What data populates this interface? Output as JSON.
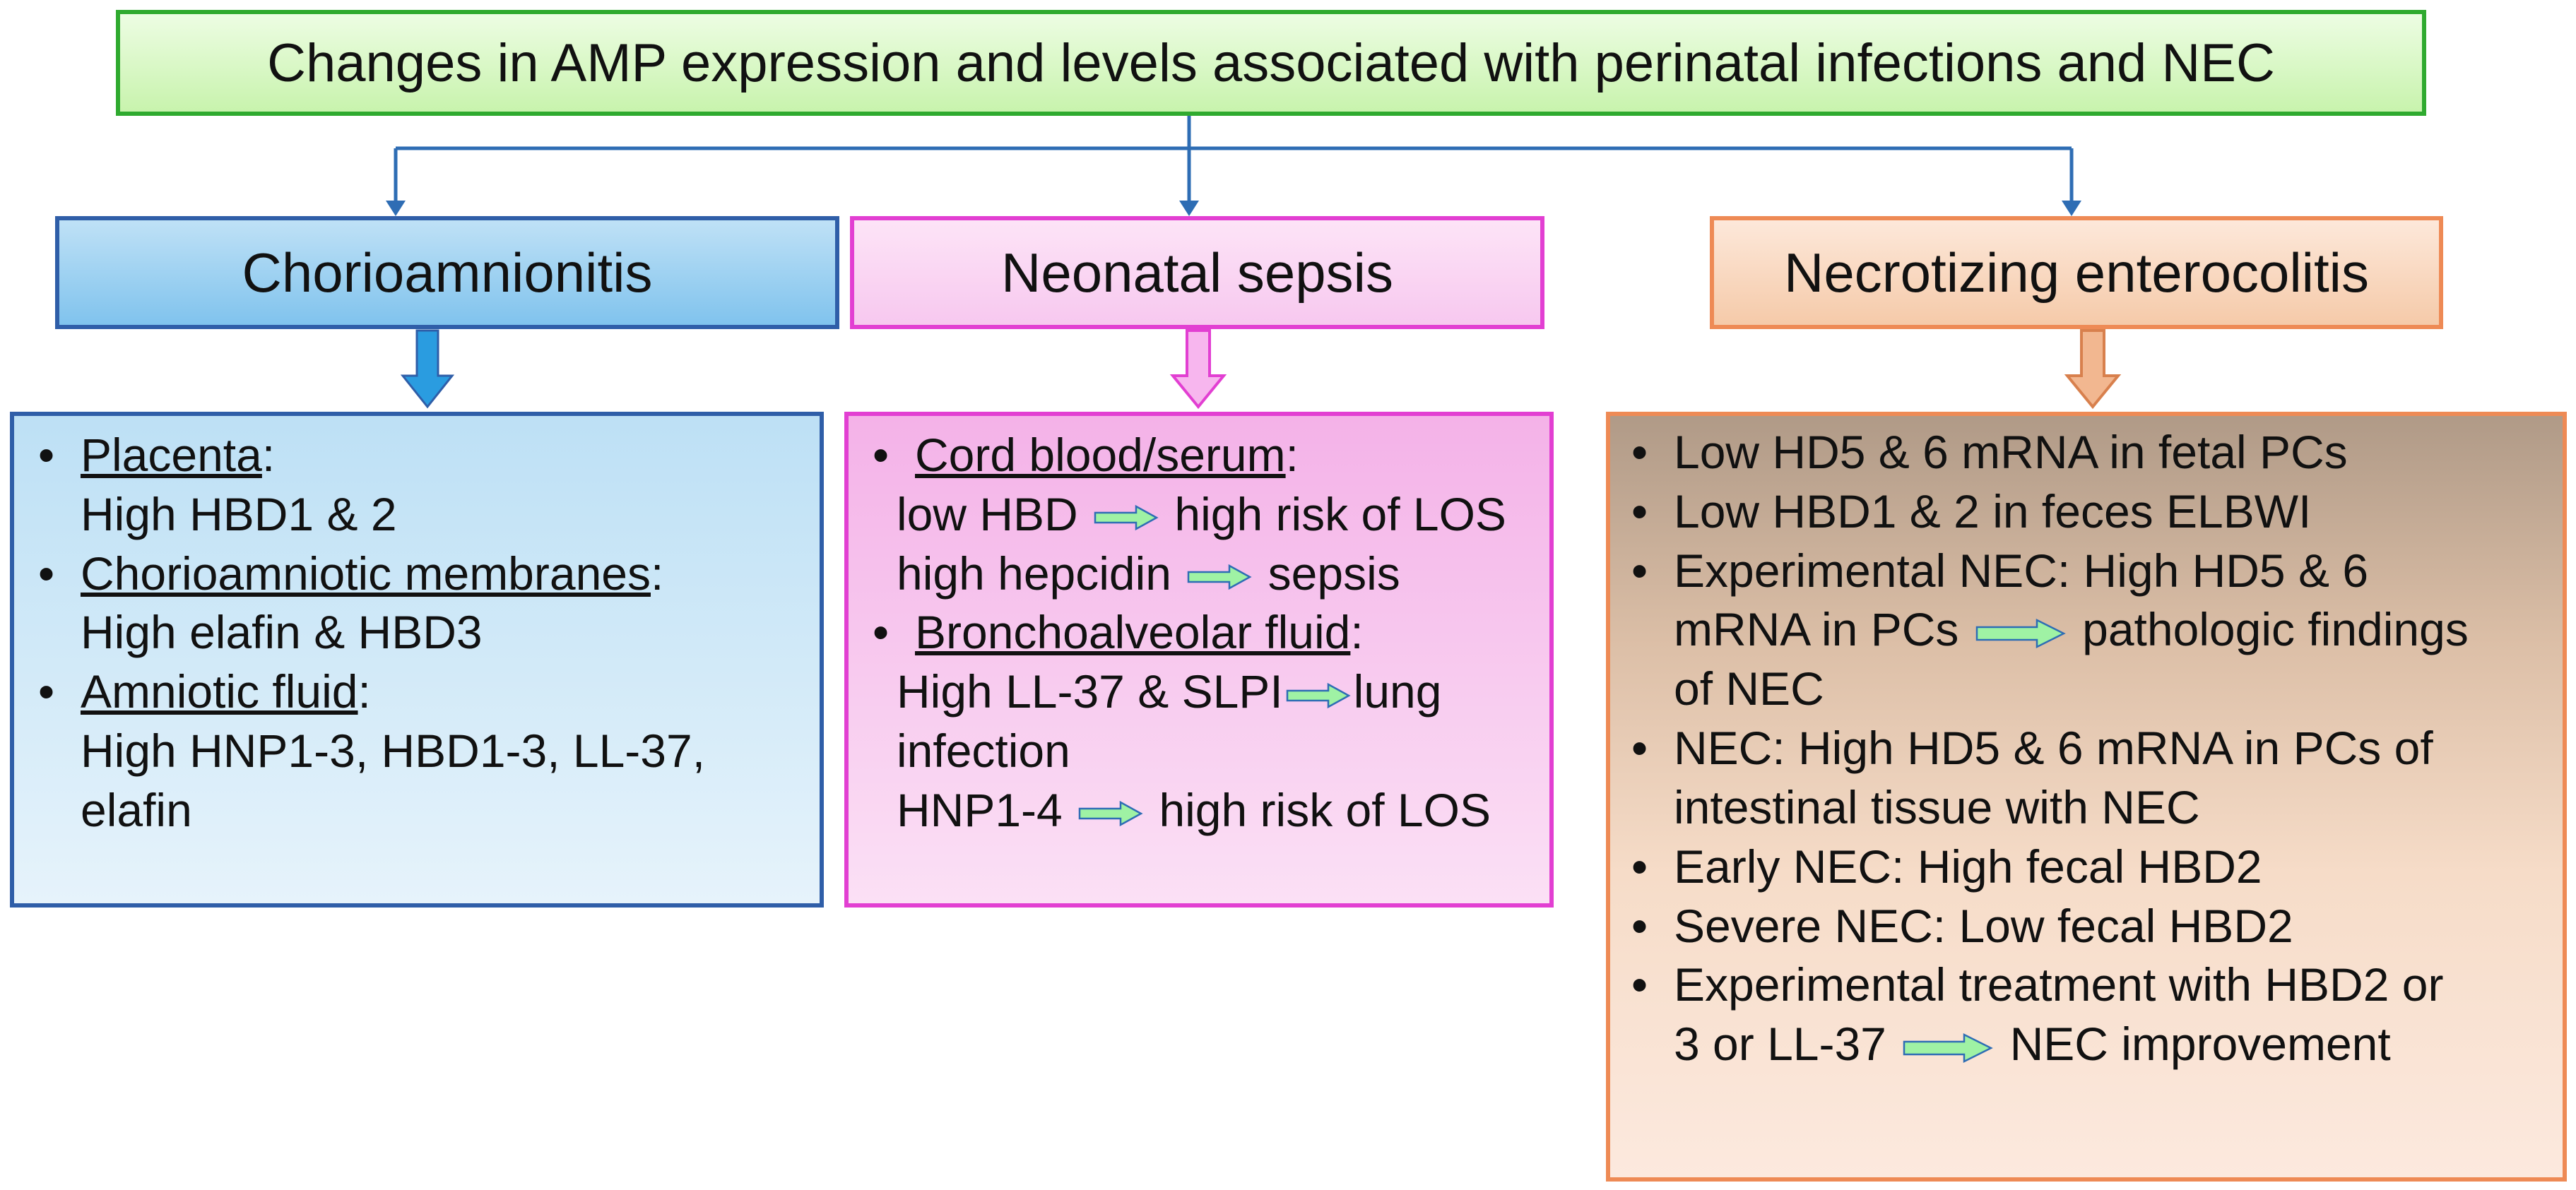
{
  "title": "Changes in AMP expression and levels associated with perinatal infections and NEC",
  "columns": [
    {
      "heading": "Chorioamnionitis",
      "items": [
        {
          "bullet": "•",
          "label": "Placenta",
          "colon": ":",
          "lines": [
            "High HBD1 & 2"
          ]
        },
        {
          "bullet": "•",
          "label": "Chorioamniotic membranes",
          "colon": ":",
          "lines": [
            "High elafin & HBD3"
          ]
        },
        {
          "bullet": "•",
          "label": "Amniotic fluid",
          "colon": ":",
          "lines": [
            "High HNP1-3, HBD1-3, LL-37,",
            "elafin"
          ]
        }
      ]
    },
    {
      "heading": "Neonatal sepsis",
      "items": [
        {
          "bullet": "•",
          "label": "Cord blood/serum",
          "colon": ":",
          "l1a": "low HBD",
          "l1b": "high risk of LOS",
          "l2a": "high hepcidin",
          "l2b": "sepsis"
        },
        {
          "bullet": "•",
          "label": "Bronchoalveolar fluid",
          "colon": ":",
          "l3a": "High  LL-37 & SLPI",
          "l3b": "lung",
          "l4": "infection",
          "l5a": "HNP1-4",
          "l5b": "high risk of LOS"
        }
      ]
    },
    {
      "heading": "Necrotizing enterocolitis",
      "items": [
        {
          "bullet": "•",
          "text": "Low HD5 & 6 mRNA in fetal PCs"
        },
        {
          "bullet": "•",
          "text": "Low HBD1 & 2 in feces ELBWI"
        },
        {
          "bullet": "•",
          "l1": "Experimental NEC: High HD5 & 6",
          "l2a": "mRNA in PCs",
          "l2b": "pathologic findings",
          "l3": "of NEC"
        },
        {
          "bullet": "•",
          "l1": "NEC: High HD5 & 6 mRNA in PCs of",
          "l2": "intestinal tissue with NEC"
        },
        {
          "bullet": "•",
          "text": "Early NEC: High fecal HBD2"
        },
        {
          "bullet": "•",
          "text": "Severe NEC: Low fecal HBD2"
        },
        {
          "bullet": "•",
          "l1": "Experimental treatment with HBD2 or",
          "l2a": "3 or LL-37",
          "l2b": "NEC improvement"
        }
      ]
    }
  ],
  "colors": {
    "connector": "#2e6db4",
    "green_arrow": "#9ff2a4",
    "blue_arrow": "#2a9ce0",
    "pink_arrow": "#f7b6ee",
    "orange_arrow": "#f2b790"
  }
}
